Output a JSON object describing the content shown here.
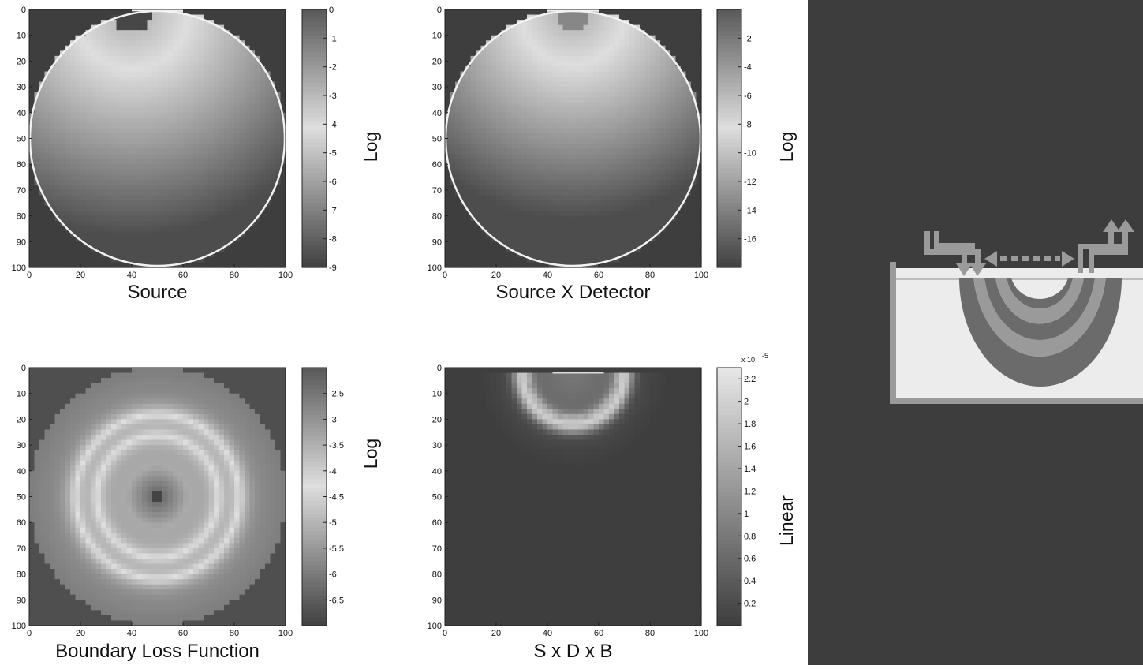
{
  "chart_data": [
    {
      "type": "heatmap",
      "title": "Source",
      "scale_label": "Log",
      "x_ticks": [
        0,
        20,
        40,
        60,
        80,
        100
      ],
      "y_ticks": [
        0,
        10,
        20,
        30,
        40,
        50,
        60,
        70,
        80,
        90,
        100
      ],
      "xlim": [
        0,
        100
      ],
      "ylim": [
        0,
        100
      ],
      "colorbar": {
        "min": -9,
        "max": 0,
        "ticks": [
          0,
          -1,
          -2,
          -3,
          -4,
          -5,
          -6,
          -7,
          -8,
          -9
        ]
      },
      "field": "source"
    },
    {
      "type": "heatmap",
      "title": "Source X Detector",
      "scale_label": "Log",
      "x_ticks": [
        0,
        20,
        40,
        60,
        80,
        100
      ],
      "y_ticks": [
        0,
        10,
        20,
        30,
        40,
        50,
        60,
        70,
        80,
        90,
        100
      ],
      "xlim": [
        0,
        100
      ],
      "ylim": [
        0,
        100
      ],
      "colorbar": {
        "min": -18,
        "max": 0,
        "ticks": [
          -2,
          -4,
          -6,
          -8,
          -10,
          -12,
          -14,
          -16
        ]
      },
      "field": "source_detector"
    },
    {
      "type": "heatmap",
      "title": "Boundary Loss Function",
      "scale_label": "Log",
      "x_ticks": [
        0,
        20,
        40,
        60,
        80,
        100
      ],
      "y_ticks": [
        0,
        10,
        20,
        30,
        40,
        50,
        60,
        70,
        80,
        90,
        100
      ],
      "xlim": [
        0,
        100
      ],
      "ylim": [
        0,
        100
      ],
      "colorbar": {
        "min": -7,
        "max": -2,
        "ticks": [
          -2.5,
          -3,
          -3.5,
          -4,
          -4.5,
          -5,
          -5.5,
          -6,
          -6.5
        ]
      },
      "field": "boundary"
    },
    {
      "type": "heatmap",
      "title": "S x D x B",
      "scale_label": "Linear",
      "x_ticks": [
        0,
        20,
        40,
        60,
        80,
        100
      ],
      "y_ticks": [
        0,
        10,
        20,
        30,
        40,
        50,
        60,
        70,
        80,
        90,
        100
      ],
      "xlim": [
        0,
        100
      ],
      "ylim": [
        0,
        100
      ],
      "colorbar": {
        "min": 0,
        "max": 2.3,
        "ticks": [
          2.2,
          2,
          1.8,
          1.6,
          1.4,
          1.2,
          1,
          0.8,
          0.6,
          0.4,
          0.2
        ],
        "multiplier": "x 10",
        "exponent": "-5"
      },
      "field": "product"
    }
  ],
  "colors": {
    "panel_dark": "#3d3d3d",
    "medium_light": "#ececec",
    "boundary_line": "#bdbdbd",
    "arc_dark": "#6b6b6b",
    "arc_light": "#9a9a9a",
    "detector": "#999999"
  },
  "icons": [
    "source-arrow-icon",
    "detector-arrow-icon",
    "separation-arrow-icon"
  ]
}
